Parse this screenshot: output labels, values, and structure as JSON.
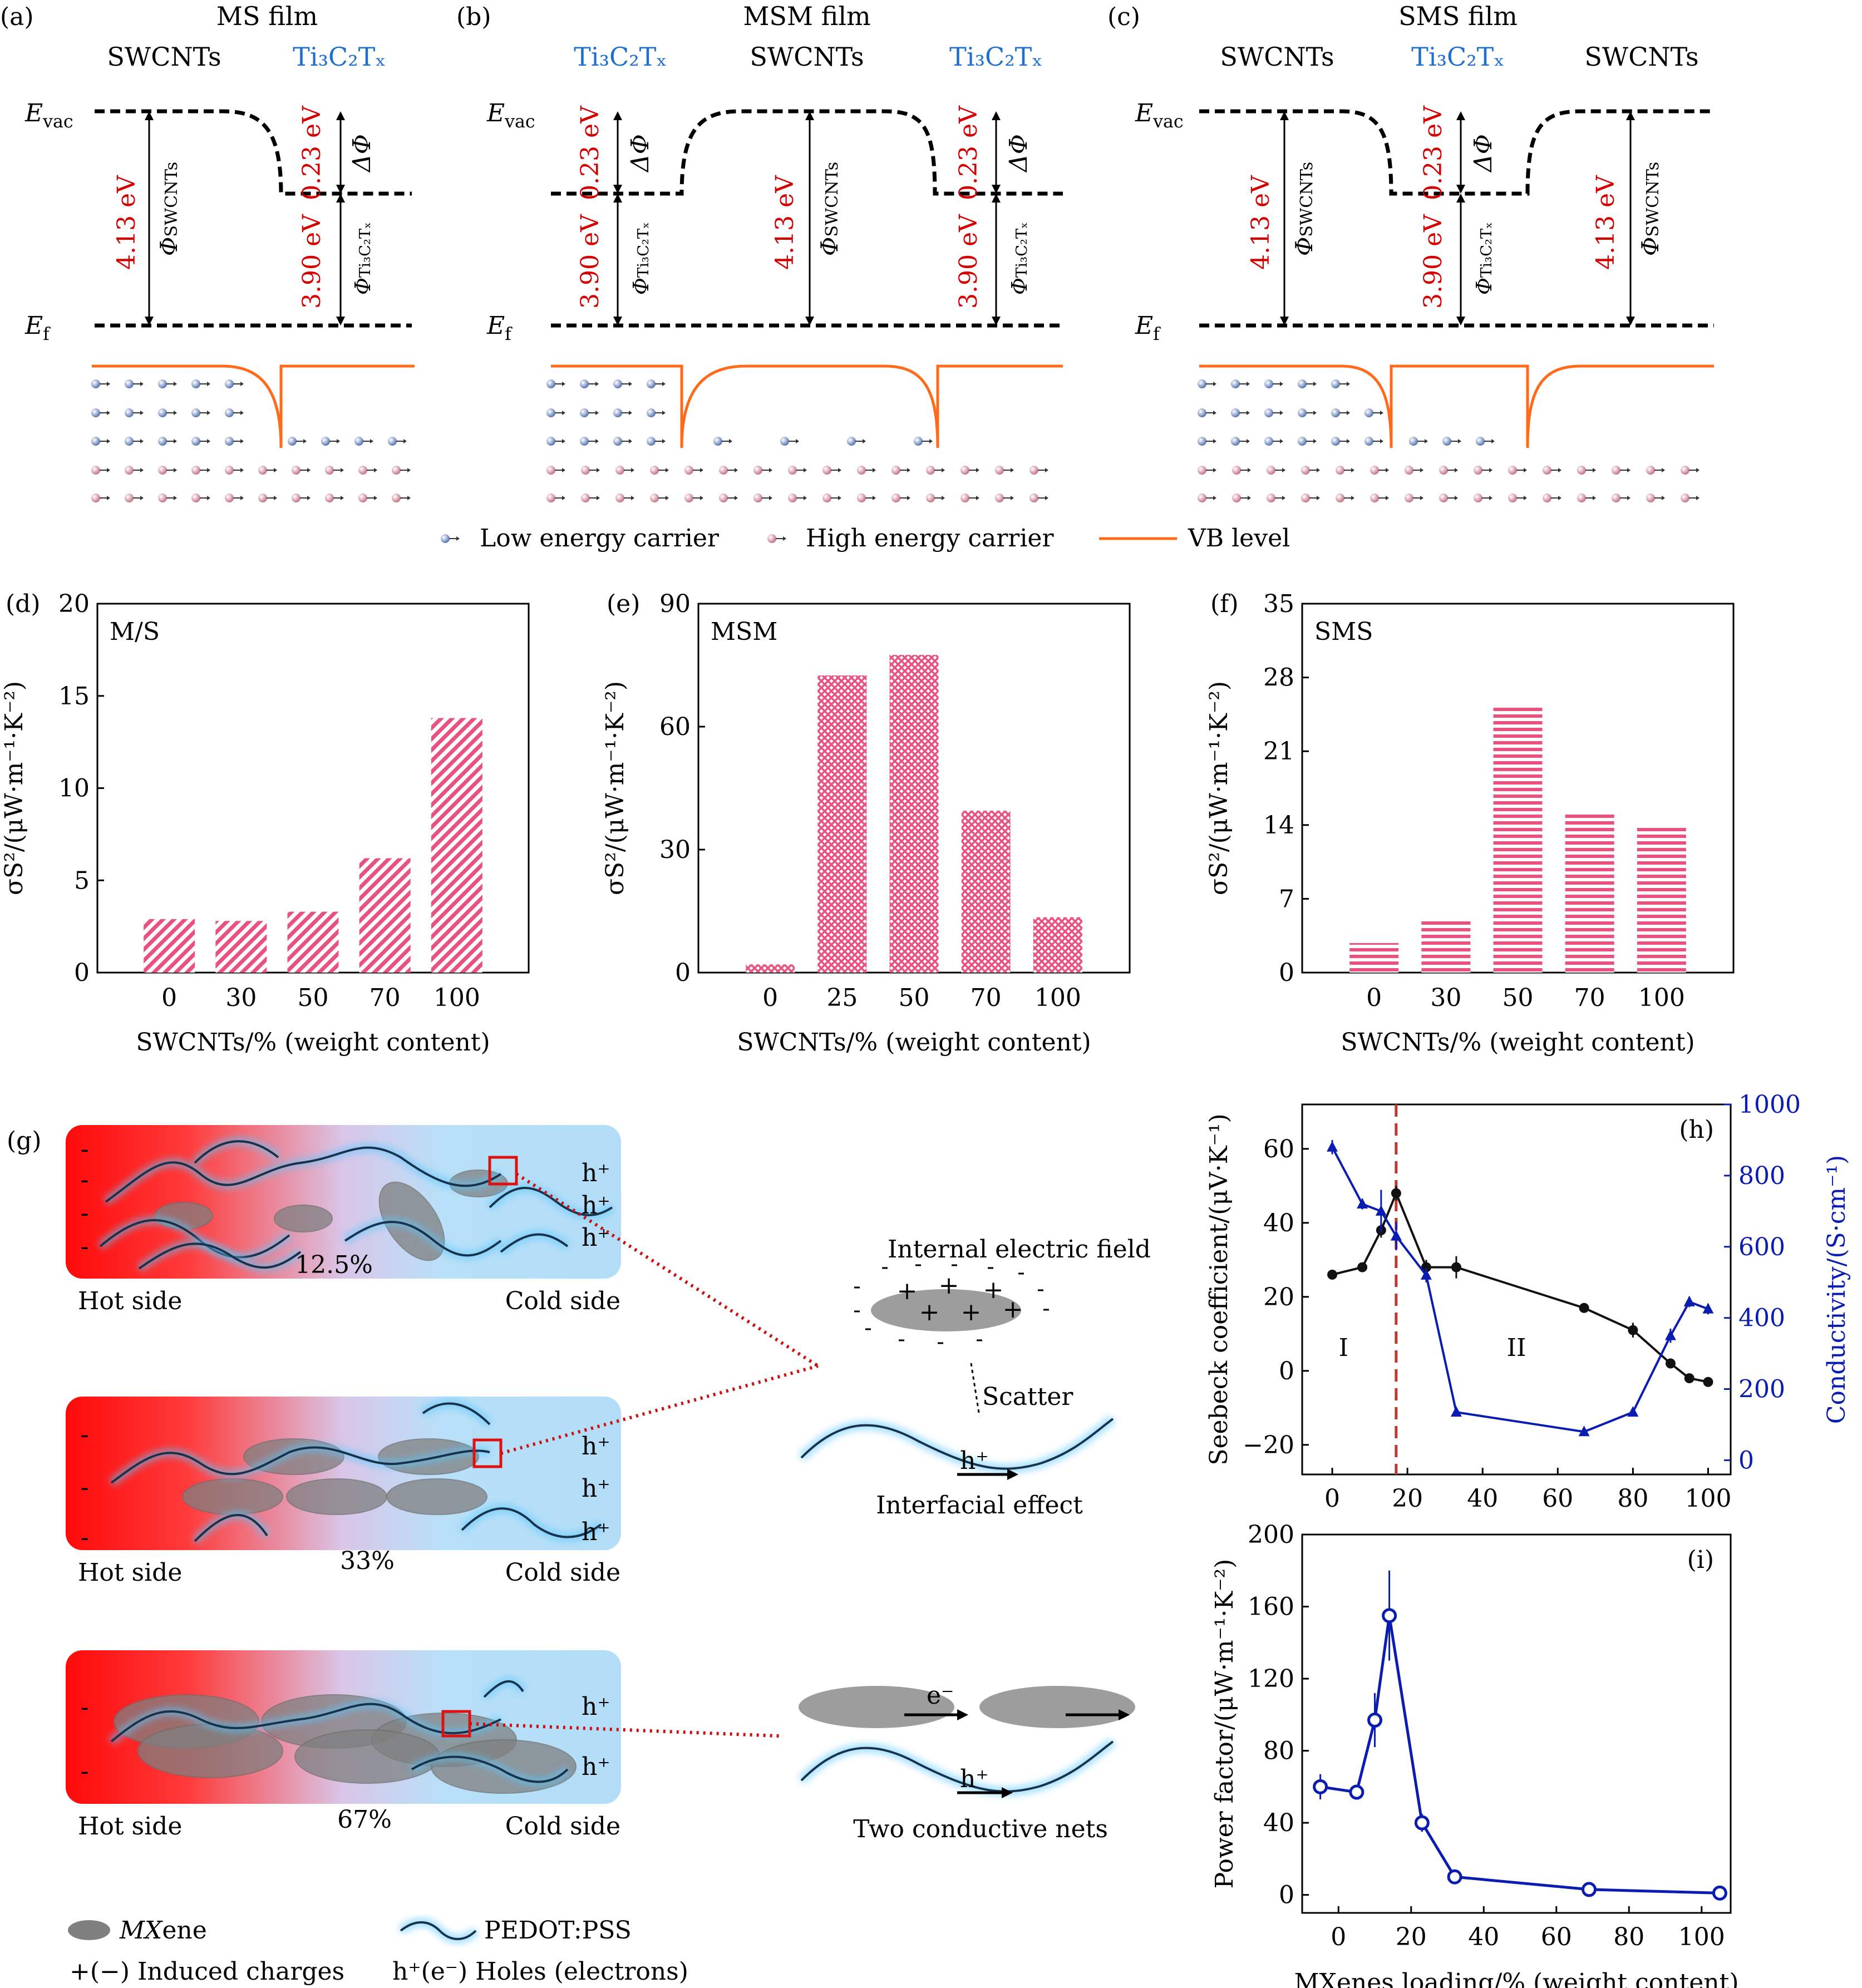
{
  "colors": {
    "red": "#d40000",
    "blue": "#1f6fd1",
    "orange": "#ff6b1a",
    "pink": "#e9517f",
    "navy": "#0b1cb0",
    "dash": "#c0392b"
  },
  "band": {
    "panels": [
      {
        "letter": "(a)",
        "title": "MS film",
        "top_left": "SWCNTs",
        "top_right": "Ti₃C₂Tₓ",
        "evac": "E",
        "evac_sub": "vac",
        "ef": "E",
        "ef_sub": "f",
        "v1": "4.13 eV",
        "phi1": "Φ",
        "phi1_sub": "SWCNTs",
        "v2": "0.23 eV",
        "dphi": "ΔΦ",
        "v3": "3.90 eV",
        "phi3": "Φ",
        "phi3_sub": "Ti₃C₂Tₓ"
      },
      {
        "letter": "(b)",
        "title": "MSM film",
        "top_left": "Ti₃C₂Tₓ",
        "top_mid": "SWCNTs",
        "top_right": "Ti₃C₂Tₓ",
        "evac": "E",
        "evac_sub": "vac",
        "ef": "E",
        "ef_sub": "f",
        "v1": "0.23 eV",
        "dphi": "ΔΦ",
        "v2": "3.90 eV",
        "phi2": "Φ",
        "phi2_sub": "Ti₃C₂Tₓ",
        "v3": "4.13 eV",
        "phi3": "Φ",
        "phi3_sub": "SWCNTs",
        "v4": "0.23 eV",
        "v5": "3.90 eV"
      },
      {
        "letter": "(c)",
        "title": "SMS film",
        "top_left": "SWCNTs",
        "top_mid": "Ti₃C₂Tₓ",
        "top_right": "SWCNTs",
        "evac": "E",
        "evac_sub": "vac",
        "ef": "E",
        "ef_sub": "f",
        "v1": "4.13 eV",
        "phi1": "Φ",
        "phi1_sub": "SWCNTs",
        "v2": "0.23 eV",
        "dphi": "ΔΦ",
        "v3": "3.90 eV",
        "phi3": "Φ",
        "phi3_sub": "Ti₃C₂Tₓ",
        "v4": "4.13 eV"
      }
    ],
    "legend": {
      "low": "Low energy carrier",
      "high": "High energy carrier",
      "vb": "VB level"
    }
  },
  "chart_data": [
    {
      "id": "d",
      "type": "bar",
      "letter": "(d)",
      "inset": "M/S",
      "categories": [
        "0",
        "30",
        "50",
        "70",
        "100"
      ],
      "values": [
        2.9,
        2.8,
        3.3,
        6.2,
        13.8
      ],
      "ylim": [
        0,
        20
      ],
      "yticks": [
        "0",
        "5",
        "10",
        "15",
        "20"
      ],
      "ylabel": "σS²/(μW·m⁻¹·K⁻²)",
      "xlabel": "SWCNTs/% (weight content)"
    },
    {
      "id": "e",
      "type": "bar",
      "letter": "(e)",
      "inset": "MSM",
      "categories": [
        "0",
        "25",
        "50",
        "70",
        "100"
      ],
      "values": [
        2,
        72.5,
        77.5,
        39.5,
        13.5
      ],
      "ylim": [
        0,
        90
      ],
      "yticks": [
        "0",
        "30",
        "60",
        "90"
      ],
      "ylabel": "σS²/(μW·m⁻¹·K⁻²)",
      "xlabel": "SWCNTs/% (weight content)"
    },
    {
      "id": "f",
      "type": "bar",
      "letter": "(f)",
      "inset": "SMS",
      "categories": [
        "0",
        "30",
        "50",
        "70",
        "100"
      ],
      "values": [
        2.8,
        5.1,
        25.2,
        15.1,
        13.9
      ],
      "ylim": [
        0,
        35
      ],
      "yticks": [
        "0",
        "7",
        "14",
        "21",
        "28",
        "35"
      ],
      "ylabel": "σS²/(μW·m⁻¹·K⁻²)",
      "xlabel": "SWCNTs/% (weight content)"
    },
    {
      "id": "h",
      "type": "line",
      "letter": "(h)",
      "xlim": [
        -8,
        106
      ],
      "xticks": [
        "0",
        "20",
        "40",
        "60",
        "80",
        "100"
      ],
      "series": [
        {
          "name": "Seebeck",
          "axis": "left",
          "x": [
            0,
            8,
            13,
            17,
            25,
            33,
            67,
            80,
            90,
            95,
            100
          ],
          "y": [
            26,
            28,
            38,
            48,
            28,
            28,
            17,
            11,
            2,
            -2,
            -3
          ],
          "err": [
            1,
            1,
            2,
            2,
            2,
            3,
            1,
            2,
            1,
            1,
            1
          ]
        },
        {
          "name": "Conductivity",
          "axis": "right",
          "x": [
            0,
            8,
            13,
            17,
            25,
            33,
            67,
            80,
            90,
            95,
            100
          ],
          "y": [
            880,
            720,
            700,
            630,
            520,
            135,
            80,
            135,
            350,
            445,
            425
          ],
          "err": [
            20,
            15,
            60,
            40,
            20,
            10,
            10,
            10,
            20,
            15,
            15
          ]
        }
      ],
      "ylim_left": [
        -28,
        72
      ],
      "yticks_left": [
        "−20",
        "0",
        "20",
        "40",
        "60"
      ],
      "ylabel_left": "Seebeck coefficient/(μV·K⁻¹)",
      "ylim_right": [
        -40,
        1000
      ],
      "yticks_right": [
        "0",
        "200",
        "400",
        "600",
        "800",
        "1000"
      ],
      "ylabel_right": "Conductivity/(S·cm⁻¹)",
      "divider_x": 17,
      "region_I": "I",
      "region_II": "II"
    },
    {
      "id": "i",
      "type": "line",
      "letter": "(i)",
      "xlim": [
        -10,
        108
      ],
      "xticks": [
        "0",
        "20",
        "40",
        "60",
        "80",
        "100"
      ],
      "series": [
        {
          "name": "Power factor",
          "x": [
            -5,
            5,
            10,
            14,
            23,
            32,
            69,
            105
          ],
          "y": [
            60,
            57,
            97,
            155,
            40,
            10,
            3,
            1
          ],
          "err": [
            7,
            3,
            15,
            25,
            5,
            3,
            2,
            2
          ]
        }
      ],
      "ylim": [
        -10,
        200
      ],
      "yticks": [
        "0",
        "40",
        "80",
        "120",
        "160",
        "200"
      ],
      "ylabel": "Power factor/(μW·m⁻¹·K⁻²)",
      "xlabel": "MXenes loading/% (weight content)"
    }
  ],
  "panel_g": {
    "letter": "(g)",
    "panels": [
      {
        "pct": "12.5%",
        "hot": "Hot side",
        "cold": "Cold side"
      },
      {
        "pct": "33%",
        "hot": "Hot side",
        "cold": "Cold side"
      },
      {
        "pct": "67%",
        "hot": "Hot side",
        "cold": "Cold side"
      }
    ],
    "holes": "h⁺",
    "electron": "e⁻",
    "internal_field": "Internal electric field",
    "scatter": "Scatter",
    "interfacial": "Interfacial effect",
    "two_nets": "Two conductive nets",
    "legend_mxene_italic": "MX",
    "legend_mxene_rest": "ene",
    "legend_pedot": "PEDOT:PSS",
    "legend_induced": "+(−) Induced charges",
    "legend_holes": "h⁺(e⁻) Holes (electrons)"
  }
}
